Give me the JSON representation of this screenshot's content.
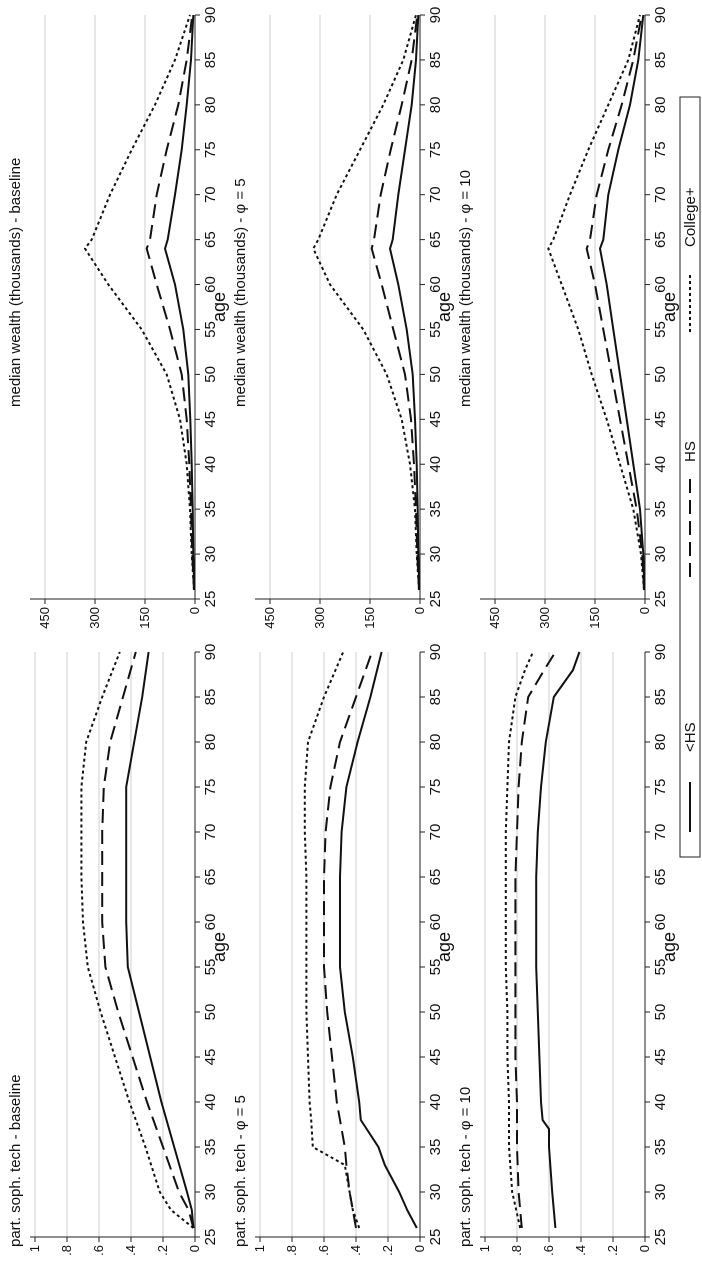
{
  "figure": {
    "legend": [
      {
        "name": "<HS",
        "dash": "solid"
      },
      {
        "name": "HS",
        "dash": "long"
      },
      {
        "name": "College+",
        "dash": "dot"
      }
    ]
  },
  "chart_data": [
    {
      "type": "line",
      "title": "part. soph. tech - baseline",
      "xlabel": "age",
      "ylabel": "",
      "xlim": [
        25,
        90
      ],
      "ylim": [
        0,
        1
      ],
      "xticks": [
        25,
        30,
        35,
        40,
        45,
        50,
        55,
        60,
        65,
        70,
        75,
        80,
        85,
        90
      ],
      "yticks": [
        "0",
        ".2",
        ".4",
        ".6",
        ".8",
        "1"
      ],
      "ytick_values": [
        0,
        0.2,
        0.4,
        0.6,
        0.8,
        1
      ],
      "grid": true,
      "x": [
        26,
        28,
        30,
        35,
        40,
        45,
        50,
        55,
        60,
        65,
        70,
        75,
        80,
        85,
        90
      ],
      "series": [
        {
          "name": "<HS",
          "values": [
            0.01,
            0.02,
            0.05,
            0.13,
            0.21,
            0.28,
            0.35,
            0.42,
            0.43,
            0.43,
            0.43,
            0.43,
            0.38,
            0.33,
            0.29
          ]
        },
        {
          "name": "HS",
          "values": [
            0.01,
            0.04,
            0.1,
            0.2,
            0.3,
            0.39,
            0.48,
            0.56,
            0.58,
            0.58,
            0.58,
            0.57,
            0.53,
            0.45,
            0.37
          ]
        },
        {
          "name": "College+",
          "values": [
            0.01,
            0.15,
            0.22,
            0.31,
            0.41,
            0.5,
            0.59,
            0.67,
            0.7,
            0.71,
            0.71,
            0.71,
            0.68,
            0.58,
            0.47
          ]
        }
      ]
    },
    {
      "type": "line",
      "title": "median wealth (thousands) - baseline",
      "xlabel": "age",
      "ylabel": "",
      "xlim": [
        25,
        90
      ],
      "ylim": [
        0,
        480
      ],
      "xticks": [
        25,
        30,
        35,
        40,
        45,
        50,
        55,
        60,
        65,
        70,
        75,
        80,
        85,
        90
      ],
      "yticks": [
        "0",
        "150",
        "300",
        "450"
      ],
      "ytick_values": [
        0,
        150,
        300,
        450
      ],
      "grid": true,
      "x": [
        26,
        30,
        35,
        40,
        45,
        50,
        55,
        60,
        64,
        65,
        70,
        75,
        80,
        85,
        90
      ],
      "series": [
        {
          "name": "<HS",
          "values": [
            2,
            5,
            7,
            10,
            14,
            20,
            35,
            60,
            90,
            82,
            60,
            40,
            25,
            12,
            5
          ]
        },
        {
          "name": "HS",
          "values": [
            3,
            8,
            12,
            17,
            25,
            40,
            75,
            115,
            145,
            135,
            115,
            85,
            50,
            25,
            8
          ]
        },
        {
          "name": "College+",
          "values": [
            3,
            10,
            15,
            25,
            45,
            85,
            160,
            260,
            330,
            310,
            255,
            190,
            120,
            60,
            15
          ]
        }
      ]
    },
    {
      "type": "line",
      "title": "part. soph. tech - φ = 5",
      "xlabel": "age",
      "ylabel": "",
      "xlim": [
        25,
        90
      ],
      "ylim": [
        0,
        1
      ],
      "xticks": [
        25,
        30,
        35,
        40,
        45,
        50,
        55,
        60,
        65,
        70,
        75,
        80,
        85,
        90
      ],
      "yticks": [
        "0",
        ".2",
        ".4",
        ".6",
        ".8",
        "1"
      ],
      "ytick_values": [
        0,
        0.2,
        0.4,
        0.6,
        0.8,
        1
      ],
      "grid": true,
      "x": [
        26,
        28,
        30,
        33,
        35,
        38,
        40,
        45,
        50,
        55,
        60,
        65,
        70,
        75,
        80,
        85,
        90
      ],
      "series": [
        {
          "name": "<HS",
          "values": [
            0.02,
            0.08,
            0.13,
            0.22,
            0.26,
            0.37,
            0.38,
            0.42,
            0.47,
            0.5,
            0.5,
            0.5,
            0.49,
            0.46,
            0.39,
            0.31,
            0.24
          ]
        },
        {
          "name": "HS",
          "values": [
            0.4,
            0.42,
            0.44,
            0.46,
            0.47,
            0.5,
            0.52,
            0.55,
            0.58,
            0.6,
            0.6,
            0.6,
            0.59,
            0.56,
            0.5,
            0.4,
            0.3
          ]
        },
        {
          "name": "College+",
          "values": [
            0.38,
            0.42,
            0.44,
            0.47,
            0.67,
            0.68,
            0.69,
            0.7,
            0.71,
            0.71,
            0.71,
            0.71,
            0.72,
            0.72,
            0.7,
            0.6,
            0.48
          ]
        }
      ]
    },
    {
      "type": "line",
      "title": "median wealth (thousands) - φ = 5",
      "xlabel": "age",
      "ylabel": "",
      "xlim": [
        25,
        90
      ],
      "ylim": [
        0,
        480
      ],
      "xticks": [
        25,
        30,
        35,
        40,
        45,
        50,
        55,
        60,
        65,
        70,
        75,
        80,
        85,
        90
      ],
      "yticks": [
        "0",
        "150",
        "300",
        "450"
      ],
      "ytick_values": [
        0,
        150,
        300,
        450
      ],
      "grid": true,
      "x": [
        26,
        30,
        35,
        40,
        45,
        50,
        55,
        60,
        64,
        65,
        70,
        75,
        80,
        85,
        90
      ],
      "series": [
        {
          "name": "<HS",
          "values": [
            2,
            5,
            7,
            10,
            15,
            22,
            40,
            65,
            90,
            82,
            65,
            45,
            25,
            12,
            5
          ]
        },
        {
          "name": "HS",
          "values": [
            3,
            8,
            12,
            18,
            27,
            45,
            80,
            115,
            145,
            138,
            118,
            88,
            55,
            25,
            8
          ]
        },
        {
          "name": "College+",
          "values": [
            3,
            10,
            15,
            30,
            55,
            100,
            170,
            270,
            320,
            305,
            250,
            180,
            110,
            50,
            12
          ]
        }
      ]
    },
    {
      "type": "line",
      "title": "part. soph. tech - φ = 10",
      "xlabel": "age",
      "ylabel": "",
      "xlim": [
        25,
        90
      ],
      "ylim": [
        0,
        1
      ],
      "xticks": [
        25,
        30,
        35,
        40,
        45,
        50,
        55,
        60,
        65,
        70,
        75,
        80,
        85,
        90
      ],
      "yticks": [
        "0",
        ".2",
        ".4",
        ".6",
        ".8",
        "1"
      ],
      "ytick_values": [
        0,
        0.2,
        0.4,
        0.6,
        0.8,
        1
      ],
      "grid": true,
      "x": [
        26,
        30,
        35,
        37,
        38,
        40,
        45,
        50,
        55,
        60,
        65,
        70,
        75,
        80,
        85,
        88,
        90
      ],
      "series": [
        {
          "name": "<HS",
          "values": [
            0.56,
            0.58,
            0.6,
            0.6,
            0.64,
            0.65,
            0.66,
            0.67,
            0.68,
            0.68,
            0.68,
            0.67,
            0.65,
            0.62,
            0.57,
            0.45,
            0.41
          ]
        },
        {
          "name": "HS",
          "values": [
            0.77,
            0.79,
            0.8,
            0.8,
            0.8,
            0.8,
            0.81,
            0.81,
            0.81,
            0.81,
            0.81,
            0.8,
            0.79,
            0.77,
            0.73,
            0.63,
            0.56
          ]
        },
        {
          "name": "College+",
          "values": [
            0.78,
            0.83,
            0.85,
            0.85,
            0.85,
            0.85,
            0.86,
            0.86,
            0.87,
            0.87,
            0.87,
            0.87,
            0.86,
            0.85,
            0.81,
            0.75,
            0.7
          ]
        }
      ]
    },
    {
      "type": "line",
      "title": "median wealth (thousands) - φ = 10",
      "xlabel": "age",
      "ylabel": "",
      "xlim": [
        25,
        90
      ],
      "ylim": [
        0,
        480
      ],
      "xticks": [
        25,
        30,
        35,
        40,
        45,
        50,
        55,
        60,
        65,
        70,
        75,
        80,
        85,
        90
      ],
      "yticks": [
        "0",
        "150",
        "300",
        "450"
      ],
      "ytick_values": [
        0,
        150,
        300,
        450
      ],
      "grid": true,
      "x": [
        26,
        30,
        35,
        40,
        45,
        50,
        55,
        60,
        64,
        65,
        70,
        75,
        80,
        85,
        90
      ],
      "series": [
        {
          "name": "<HS",
          "values": [
            2,
            5,
            15,
            35,
            55,
            75,
            95,
            115,
            135,
            125,
            110,
            80,
            45,
            20,
            5
          ]
        },
        {
          "name": "HS",
          "values": [
            3,
            8,
            25,
            50,
            75,
            100,
            125,
            150,
            175,
            165,
            145,
            110,
            70,
            35,
            10
          ]
        },
        {
          "name": "College+",
          "values": [
            3,
            12,
            35,
            75,
            115,
            160,
            200,
            250,
            290,
            275,
            225,
            170,
            110,
            50,
            15
          ]
        }
      ]
    }
  ]
}
